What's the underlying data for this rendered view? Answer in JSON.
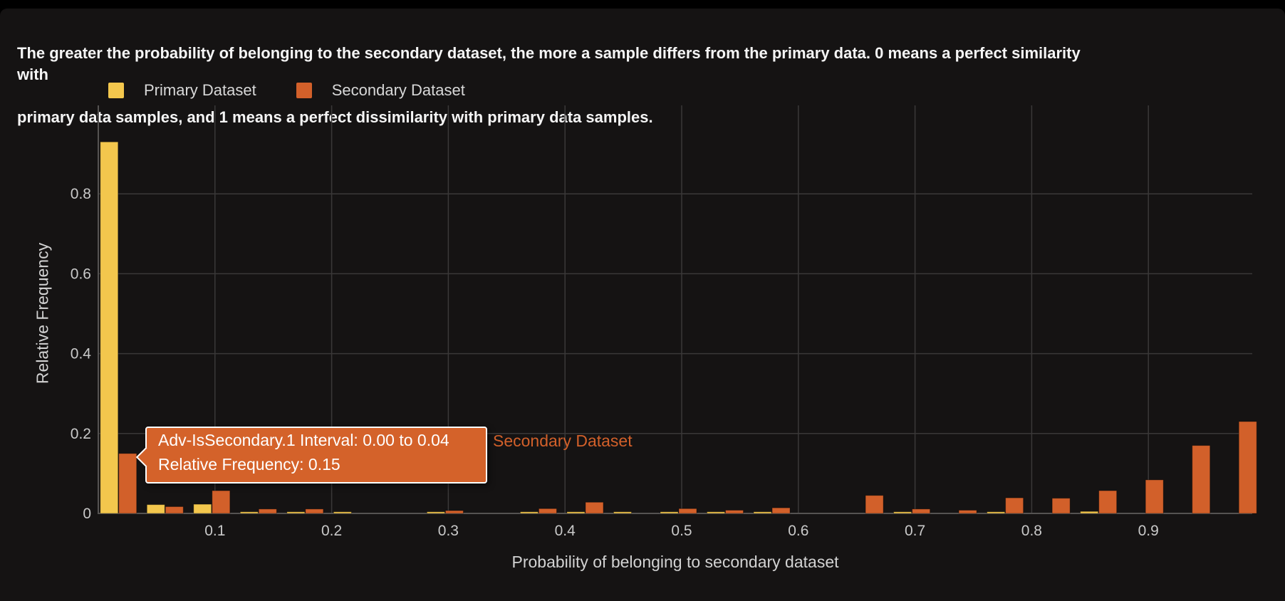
{
  "description": {
    "line1": "The greater the probability of belonging to the secondary dataset, the more a sample differs from the primary data. 0 means a perfect similarity with",
    "line2": "primary data samples, and 1 means a perfect dissimilarity with primary data samples."
  },
  "legend": {
    "items": [
      {
        "label": "Primary Dataset",
        "color": "#f3c74d"
      },
      {
        "label": "Secondary Dataset",
        "color": "#d2602a"
      }
    ]
  },
  "tooltip": {
    "line1": "Adv-IsSecondary.1 Interval: 0.00 to 0.04",
    "line2": "Relative Frequency: 0.15",
    "series_label": "Secondary Dataset",
    "bg_color": "#d4622a"
  },
  "colors": {
    "panel_bg": "#151313",
    "gridline": "#3a3838",
    "axis_line": "#555352",
    "tick_text": "#c9c9c9"
  },
  "chart_data": {
    "type": "bar",
    "mode": "grouped-histogram",
    "title": "",
    "xlabel": "Probability of belonging to secondary dataset",
    "ylabel": "Relative Frequency",
    "xlim": [
      0,
      1.0
    ],
    "ylim": [
      0,
      1.02
    ],
    "grid": true,
    "legend_position": "top-left",
    "x_tick_labels": [
      "0.1",
      "0.2",
      "0.3",
      "0.4",
      "0.5",
      "0.6",
      "0.7",
      "0.8",
      "0.9"
    ],
    "x_ticks": [
      0.1,
      0.2,
      0.3,
      0.4,
      0.5,
      0.6,
      0.7,
      0.8,
      0.9
    ],
    "y_tick_labels": [
      "0",
      "0.2",
      "0.4",
      "0.6",
      "0.8"
    ],
    "y_ticks": [
      0,
      0.2,
      0.4,
      0.6,
      0.8
    ],
    "bin_width": 0.04,
    "bin_starts": [
      0,
      0.04,
      0.08,
      0.12,
      0.16,
      0.2,
      0.24,
      0.28,
      0.32,
      0.36,
      0.4,
      0.44,
      0.48,
      0.52,
      0.56,
      0.6,
      0.64,
      0.68,
      0.72,
      0.76,
      0.8,
      0.84,
      0.88,
      0.92,
      0.96
    ],
    "series": [
      {
        "name": "Primary Dataset",
        "color": "#f3c74d",
        "values": [
          0.93,
          0.022,
          0.023,
          0.004,
          0.004,
          0.004,
          0,
          0.004,
          0,
          0.004,
          0.004,
          0.004,
          0.004,
          0.004,
          0.004,
          0,
          0,
          0.004,
          0,
          0.004,
          0,
          0.005,
          0,
          0,
          0
        ]
      },
      {
        "name": "Secondary Dataset",
        "color": "#d2602a",
        "values": [
          0.15,
          0.017,
          0.057,
          0.011,
          0.011,
          0,
          0,
          0.007,
          0,
          0.012,
          0.028,
          0,
          0.012,
          0.008,
          0.014,
          0,
          0.045,
          0.011,
          0.008,
          0.039,
          0.038,
          0.057,
          0.084,
          0.17,
          0.23
        ]
      }
    ]
  }
}
